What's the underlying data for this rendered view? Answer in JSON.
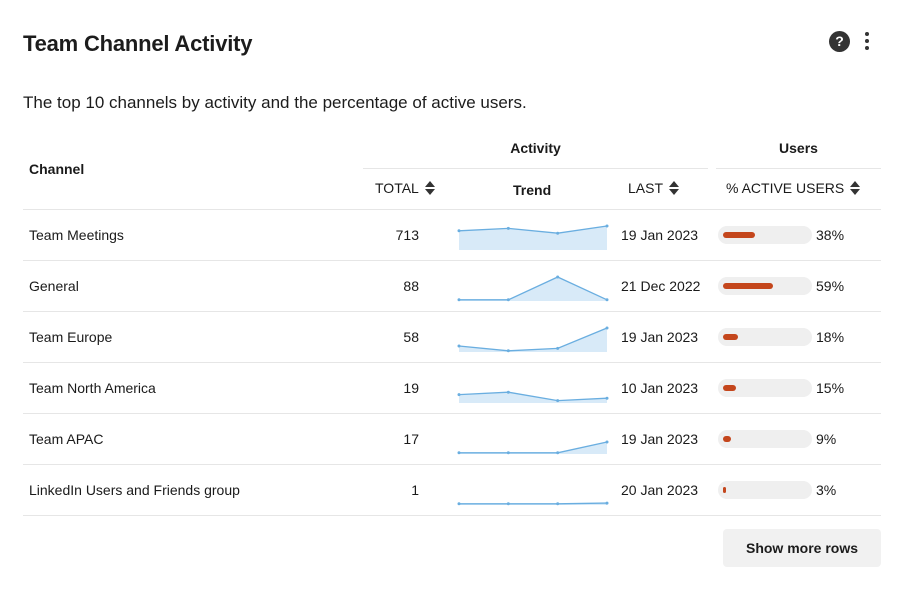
{
  "header": {
    "title": "Team Channel Activity",
    "help_glyph": "?",
    "help_icon": "question-circle-icon",
    "more_icon": "kebab-menu-icon"
  },
  "description": "The top 10 channels by activity and the percentage of active users.",
  "columns": {
    "channel": "Channel",
    "activity": "Activity",
    "users": "Users",
    "total": "TOTAL",
    "trend": "Trend",
    "last": "LAST",
    "active_users": "% ACTIVE USERS"
  },
  "colors": {
    "bar_fill": "#c4461c",
    "bar_track": "#efefef",
    "trend_line": "#6aaee0",
    "trend_fill": "#d8eaf8"
  },
  "rows": [
    {
      "channel": "Team Meetings",
      "total": "713",
      "last": "19 Jan 2023",
      "active_pct_label": "38%",
      "active_pct": 38,
      "trend": [
        0.8,
        0.9,
        0.7,
        1.0
      ]
    },
    {
      "channel": "General",
      "total": "88",
      "last": "21 Dec 2022",
      "active_pct_label": "59%",
      "active_pct": 59,
      "trend": [
        0.05,
        0.05,
        1.0,
        0.05
      ]
    },
    {
      "channel": "Team Europe",
      "total": "58",
      "last": "19 Jan 2023",
      "active_pct_label": "18%",
      "active_pct": 18,
      "trend": [
        0.25,
        0.05,
        0.15,
        1.0
      ]
    },
    {
      "channel": "Team North America",
      "total": "19",
      "last": "10 Jan 2023",
      "active_pct_label": "15%",
      "active_pct": 15,
      "trend": [
        0.35,
        0.45,
        0.1,
        0.2
      ]
    },
    {
      "channel": "Team APAC",
      "total": "17",
      "last": "19 Jan 2023",
      "active_pct_label": "9%",
      "active_pct": 9,
      "trend": [
        0.05,
        0.05,
        0.05,
        0.5
      ]
    },
    {
      "channel": "LinkedIn Users and Friends group",
      "total": "1",
      "last": "20 Jan 2023",
      "active_pct_label": "3%",
      "active_pct": 3,
      "trend": [
        0.05,
        0.05,
        0.05,
        0.08
      ]
    }
  ],
  "footer": {
    "show_more_label": "Show more rows"
  }
}
